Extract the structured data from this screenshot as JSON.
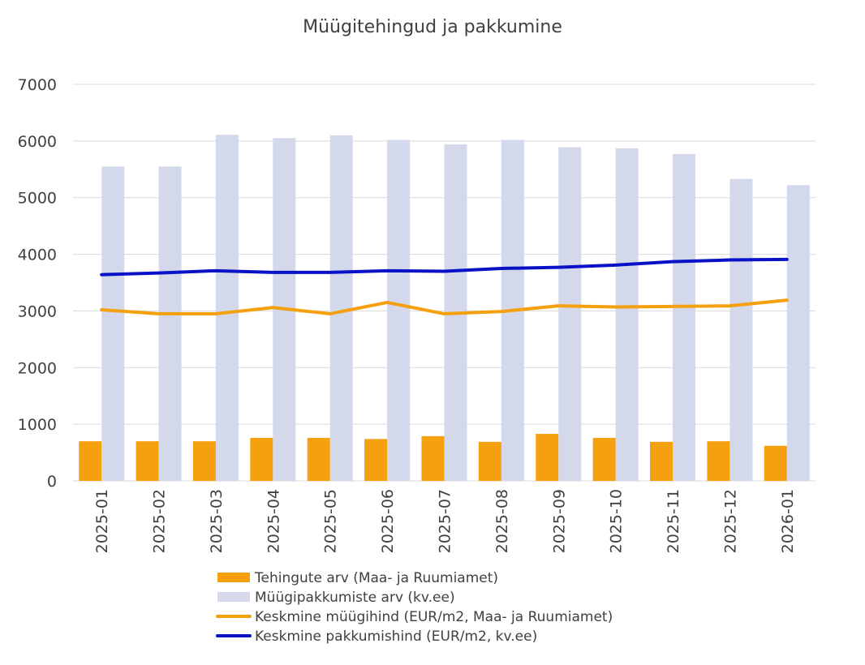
{
  "chart_data": {
    "type": "bar",
    "title": "Müügitehingud ja pakkumine",
    "categories": [
      "2025-01",
      "2025-02",
      "2025-03",
      "2025-04",
      "2025-05",
      "2025-06",
      "2025-07",
      "2025-08",
      "2025-09",
      "2025-10",
      "2025-11",
      "2025-12",
      "2026-01"
    ],
    "ylim": [
      0,
      7000
    ],
    "yticks": [
      0,
      1000,
      2000,
      3000,
      4000,
      5000,
      6000,
      7000
    ],
    "grid": true,
    "legend_position": "bottom",
    "series": [
      {
        "name": "Tehingute arv (Maa- ja Ruumiamet)",
        "kind": "bar",
        "color": "#f5a00f",
        "values": [
          700,
          700,
          700,
          760,
          760,
          740,
          790,
          690,
          830,
          760,
          690,
          700,
          620
        ]
      },
      {
        "name": "Müügipakkumiste arv (kv.ee)",
        "kind": "bar",
        "color": "#d3d8ea",
        "values": [
          5550,
          5550,
          6110,
          6050,
          6100,
          6020,
          5940,
          6020,
          5890,
          5870,
          5770,
          5330,
          5220
        ]
      },
      {
        "name": "Keskmine müügihind (EUR/m2, Maa- ja Ruumiamet)",
        "kind": "line",
        "color": "#f5a00f",
        "values": [
          3020,
          2950,
          2950,
          3060,
          2950,
          3150,
          2950,
          2990,
          3090,
          3070,
          3080,
          3090,
          3190
        ]
      },
      {
        "name": "Keskmine pakkumishind (EUR/m2, kv.ee)",
        "kind": "line",
        "color": "#0a12c8",
        "values": [
          3640,
          3670,
          3710,
          3680,
          3680,
          3710,
          3700,
          3750,
          3770,
          3810,
          3870,
          3900,
          3910
        ]
      }
    ]
  }
}
